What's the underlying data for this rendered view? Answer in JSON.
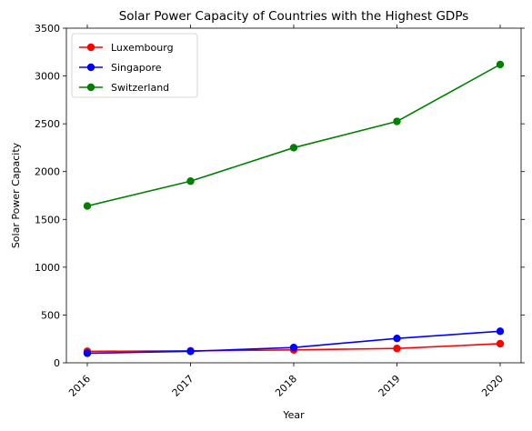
{
  "chart_data": {
    "type": "line",
    "title": "Solar Power Capacity of Countries with the Highest GDPs",
    "xlabel": "Year",
    "ylabel": "Solar Power Capacity",
    "categories": [
      "2016",
      "2017",
      "2018",
      "2019",
      "2020"
    ],
    "ylim": [
      0,
      3500
    ],
    "yticks": [
      0,
      500,
      1000,
      1500,
      2000,
      2500,
      3000,
      3500
    ],
    "grid": false,
    "legend_position": "top-left",
    "series": [
      {
        "name": "Luxembourg",
        "color": "#ff0000",
        "values": [
          120,
          125,
          135,
          150,
          200
        ]
      },
      {
        "name": "Singapore",
        "color": "#0000ff",
        "values": [
          100,
          120,
          160,
          255,
          330
        ]
      },
      {
        "name": "Switzerland",
        "color": "#008000",
        "values": [
          1640,
          1900,
          2250,
          2525,
          3120
        ]
      }
    ]
  }
}
